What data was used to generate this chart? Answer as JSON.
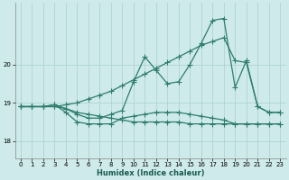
{
  "bg_color": "#ceeaea",
  "line_color": "#2e7d6e",
  "grid_color": "#aacfcf",
  "xlabel": "Humidex (Indice chaleur)",
  "x_ticks": [
    0,
    1,
    2,
    3,
    4,
    5,
    6,
    7,
    8,
    9,
    10,
    11,
    12,
    13,
    14,
    15,
    16,
    17,
    18,
    19,
    20,
    21,
    22,
    23
  ],
  "y_ticks": [
    18,
    19,
    20
  ],
  "ylim": [
    17.55,
    21.6
  ],
  "xlim": [
    -0.5,
    23.5
  ],
  "curve1_x": [
    0,
    1,
    2,
    3,
    4,
    5,
    6,
    7,
    8,
    9,
    10,
    11,
    12,
    13,
    14,
    15,
    16,
    17,
    18,
    19,
    20,
    21,
    22,
    23
  ],
  "curve1_y": [
    18.9,
    18.9,
    18.9,
    18.95,
    18.85,
    18.7,
    18.6,
    18.6,
    18.7,
    18.8,
    19.55,
    20.2,
    19.85,
    19.5,
    19.55,
    20.0,
    20.55,
    21.15,
    21.2,
    19.4,
    20.1,
    18.9,
    18.75,
    18.75
  ],
  "curve2_x": [
    0,
    1,
    2,
    3,
    4,
    5,
    6,
    7,
    8,
    9,
    10,
    11,
    12,
    13,
    14,
    15,
    16,
    17,
    18,
    19,
    20,
    21,
    22,
    23
  ],
  "curve2_y": [
    18.9,
    18.9,
    18.9,
    18.9,
    18.95,
    19.0,
    19.1,
    19.2,
    19.3,
    19.45,
    19.6,
    19.75,
    19.9,
    20.05,
    20.2,
    20.35,
    20.5,
    20.6,
    20.7,
    20.1,
    20.05,
    18.9,
    18.75,
    18.75
  ],
  "curve3_x": [
    0,
    1,
    2,
    3,
    4,
    5,
    6,
    7,
    8,
    9,
    10,
    11,
    12,
    13,
    14,
    15,
    16,
    17,
    18,
    19,
    20,
    21,
    22,
    23
  ],
  "curve3_y": [
    18.9,
    18.9,
    18.9,
    18.9,
    18.85,
    18.75,
    18.7,
    18.65,
    18.6,
    18.55,
    18.5,
    18.5,
    18.5,
    18.5,
    18.5,
    18.45,
    18.45,
    18.45,
    18.45,
    18.45,
    18.45,
    18.45,
    18.45,
    18.45
  ],
  "curve4_x": [
    0,
    1,
    2,
    3,
    4,
    5,
    6,
    7,
    8,
    9,
    10,
    11,
    12,
    13,
    14,
    15,
    16,
    17,
    18,
    19,
    20,
    21,
    22,
    23
  ],
  "curve4_y": [
    18.9,
    18.9,
    18.9,
    18.95,
    18.75,
    18.5,
    18.45,
    18.45,
    18.45,
    18.6,
    18.65,
    18.7,
    18.75,
    18.75,
    18.75,
    18.7,
    18.65,
    18.6,
    18.55,
    18.45,
    18.45,
    18.45,
    18.45,
    18.45
  ]
}
